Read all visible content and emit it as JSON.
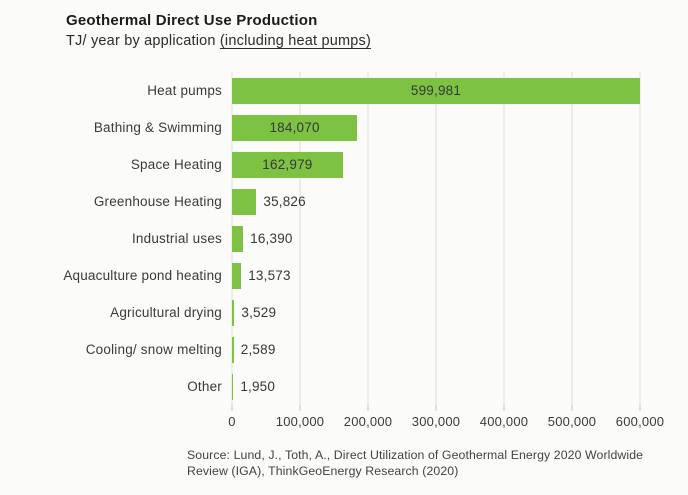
{
  "header": {
    "title": "Geothermal Direct Use Production",
    "subtitle_prefix": "TJ/ year by application ",
    "subtitle_underlined": "(including heat pumps)"
  },
  "chart_data": {
    "type": "bar",
    "orientation": "horizontal",
    "title": "Geothermal Direct Use Production",
    "subtitle": "TJ/ year by application (including heat pumps)",
    "xlabel": "",
    "ylabel": "",
    "categories": [
      "Heat pumps",
      "Bathing & Swimming",
      "Space Heating",
      "Greenhouse Heating",
      "Industrial uses",
      "Aquaculture pond heating",
      "Agricultural drying",
      "Cooling/ snow melting",
      "Other"
    ],
    "values": [
      599981,
      184070,
      162979,
      35826,
      16390,
      13573,
      3529,
      2589,
      1950
    ],
    "value_labels": [
      "599,981",
      "184,070",
      "162,979",
      "35,826",
      "16,390",
      "13,573",
      "3,529",
      "2,589",
      "1,950"
    ],
    "xlim": [
      0,
      600000
    ],
    "x_ticks": [
      0,
      100000,
      200000,
      300000,
      400000,
      500000,
      600000
    ],
    "x_tick_labels": [
      "0",
      "100,000",
      "200,000",
      "300,000",
      "400,000",
      "500,000",
      "600,000"
    ],
    "bar_color": "#7dc243",
    "grid": true,
    "legend": "none",
    "inside_label_min_value": 100000
  },
  "footer": {
    "source_line1": "Source: Lund, J., Toth, A., Direct Utilization of Geothermal Energy 2020 Worldwide",
    "source_line2": "Review (IGA), ThinkGeoEnergy Research (2020)"
  }
}
